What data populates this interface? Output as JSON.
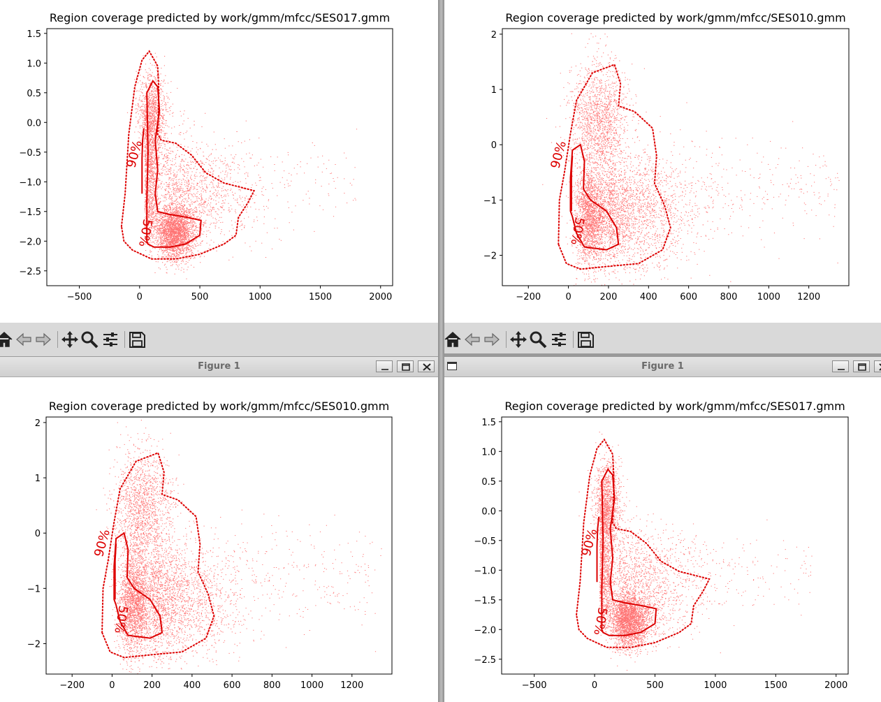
{
  "windows": [
    {
      "id": "top-left",
      "title": "",
      "has_titlebar": false
    },
    {
      "id": "top-right",
      "title": "",
      "has_titlebar": false
    },
    {
      "id": "bottom-left",
      "title": "Figure 1",
      "has_titlebar": true
    },
    {
      "id": "bottom-right",
      "title": "Figure 1",
      "has_titlebar": true
    }
  ],
  "toolbar": {
    "icons": [
      "home-icon",
      "back-arrow-icon",
      "forward-arrow-icon",
      "pan-icon",
      "zoom-icon",
      "configure-subplots-icon",
      "save-icon"
    ]
  },
  "colors": {
    "points": "#ff0000",
    "contours": "#dd0000",
    "toolbar": "#d9d9d9",
    "titlebar": "#d4d4d4"
  },
  "chart_data": [
    {
      "type": "scatter",
      "title": "Region coverage predicted by work/gmm/mfcc/SES017.gmm",
      "xlim": [
        -770,
        2100
      ],
      "ylim": [
        -2.75,
        1.58
      ],
      "xticks": [
        -500,
        0,
        500,
        1000,
        1500,
        2000
      ],
      "xtick_labels": [
        "−500",
        "0",
        "500",
        "1000",
        "1500",
        "2000"
      ],
      "yticks": [
        -2.5,
        -2.0,
        -1.5,
        -1.0,
        -0.5,
        0.0,
        0.5,
        1.0,
        1.5
      ],
      "ytick_labels": [
        "−2.5",
        "−2.0",
        "−1.5",
        "−1.0",
        "−0.5",
        "0.0",
        "0.5",
        "1.0",
        "1.5"
      ],
      "contour_labels": [
        "90%",
        "50%"
      ],
      "marker_color": "#ff0000"
    },
    {
      "type": "scatter",
      "title": "Region coverage predicted by work/gmm/mfcc/SES010.gmm",
      "xlim": [
        -330,
        1400
      ],
      "ylim": [
        -2.55,
        2.1
      ],
      "xticks": [
        -200,
        0,
        200,
        400,
        600,
        800,
        1000,
        1200
      ],
      "xtick_labels": [
        "−200",
        "0",
        "200",
        "400",
        "600",
        "800",
        "1000",
        "1200"
      ],
      "yticks": [
        -2,
        -1,
        0,
        1,
        2
      ],
      "ytick_labels": [
        "−2",
        "−1",
        "0",
        "1",
        "2"
      ],
      "contour_labels": [
        "90%",
        "50%"
      ],
      "marker_color": "#ff0000"
    },
    {
      "type": "scatter",
      "title": "Region coverage predicted by work/gmm/mfcc/SES010.gmm",
      "xlim": [
        -330,
        1400
      ],
      "ylim": [
        -2.55,
        2.1
      ],
      "xticks": [
        -200,
        0,
        200,
        400,
        600,
        800,
        1000,
        1200
      ],
      "xtick_labels": [
        "−200",
        "0",
        "200",
        "400",
        "600",
        "800",
        "1000",
        "1200"
      ],
      "yticks": [
        -2,
        -1,
        0,
        1,
        2
      ],
      "ytick_labels": [
        "−2",
        "−1",
        "0",
        "1",
        "2"
      ],
      "contour_labels": [
        "90%",
        "50%"
      ],
      "marker_color": "#ff0000"
    },
    {
      "type": "scatter",
      "title": "Region coverage predicted by work/gmm/mfcc/SES017.gmm",
      "xlim": [
        -770,
        2100
      ],
      "ylim": [
        -2.75,
        1.58
      ],
      "xticks": [
        -500,
        0,
        500,
        1000,
        1500,
        2000
      ],
      "xtick_labels": [
        "−500",
        "0",
        "500",
        "1000",
        "1500",
        "2000"
      ],
      "yticks": [
        -2.5,
        -2.0,
        -1.5,
        -1.0,
        -0.5,
        0.0,
        0.5,
        1.0,
        1.5
      ],
      "ytick_labels": [
        "−2.5",
        "−2.0",
        "−1.5",
        "−1.0",
        "−0.5",
        "0.0",
        "0.5",
        "1.0",
        "1.5"
      ],
      "contour_labels": [
        "90%",
        "50%"
      ],
      "marker_color": "#ff0000"
    }
  ]
}
